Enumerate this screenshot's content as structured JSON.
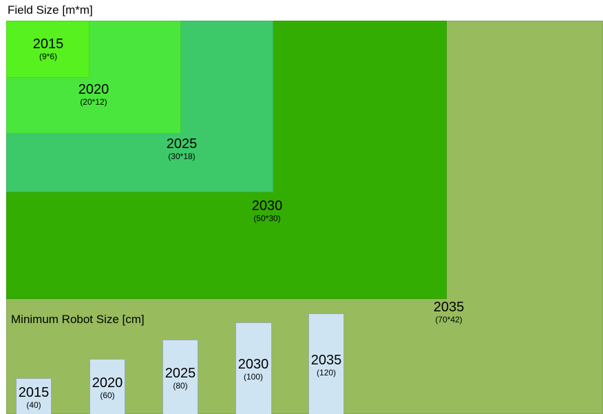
{
  "field_size": {
    "title": "Field Size [m*m]",
    "areas": [
      {
        "year": "2035",
        "dims": "(70*42)",
        "color": "#97bb5d"
      },
      {
        "year": "2030",
        "dims": "(50*30)",
        "color": "#34ad02"
      },
      {
        "year": "2025",
        "dims": "(30*18)",
        "color": "#3dc96a"
      },
      {
        "year": "2020",
        "dims": "(20*12)",
        "color": "#4be63d"
      },
      {
        "year": "2015",
        "dims": "(9*6)",
        "color": "#56f11f"
      }
    ]
  },
  "robot_size": {
    "title": "Minimum Robot Size [cm]",
    "bar_color": "#cfe4f3",
    "bars": [
      {
        "year": "2015",
        "value_label": "(40)",
        "value": 40
      },
      {
        "year": "2020",
        "value_label": "(60)",
        "value": 60
      },
      {
        "year": "2025",
        "value_label": "(80)",
        "value": 80
      },
      {
        "year": "2030",
        "value_label": "(100)",
        "value": 100
      },
      {
        "year": "2035",
        "value_label": "(120)",
        "value": 120
      }
    ]
  }
}
